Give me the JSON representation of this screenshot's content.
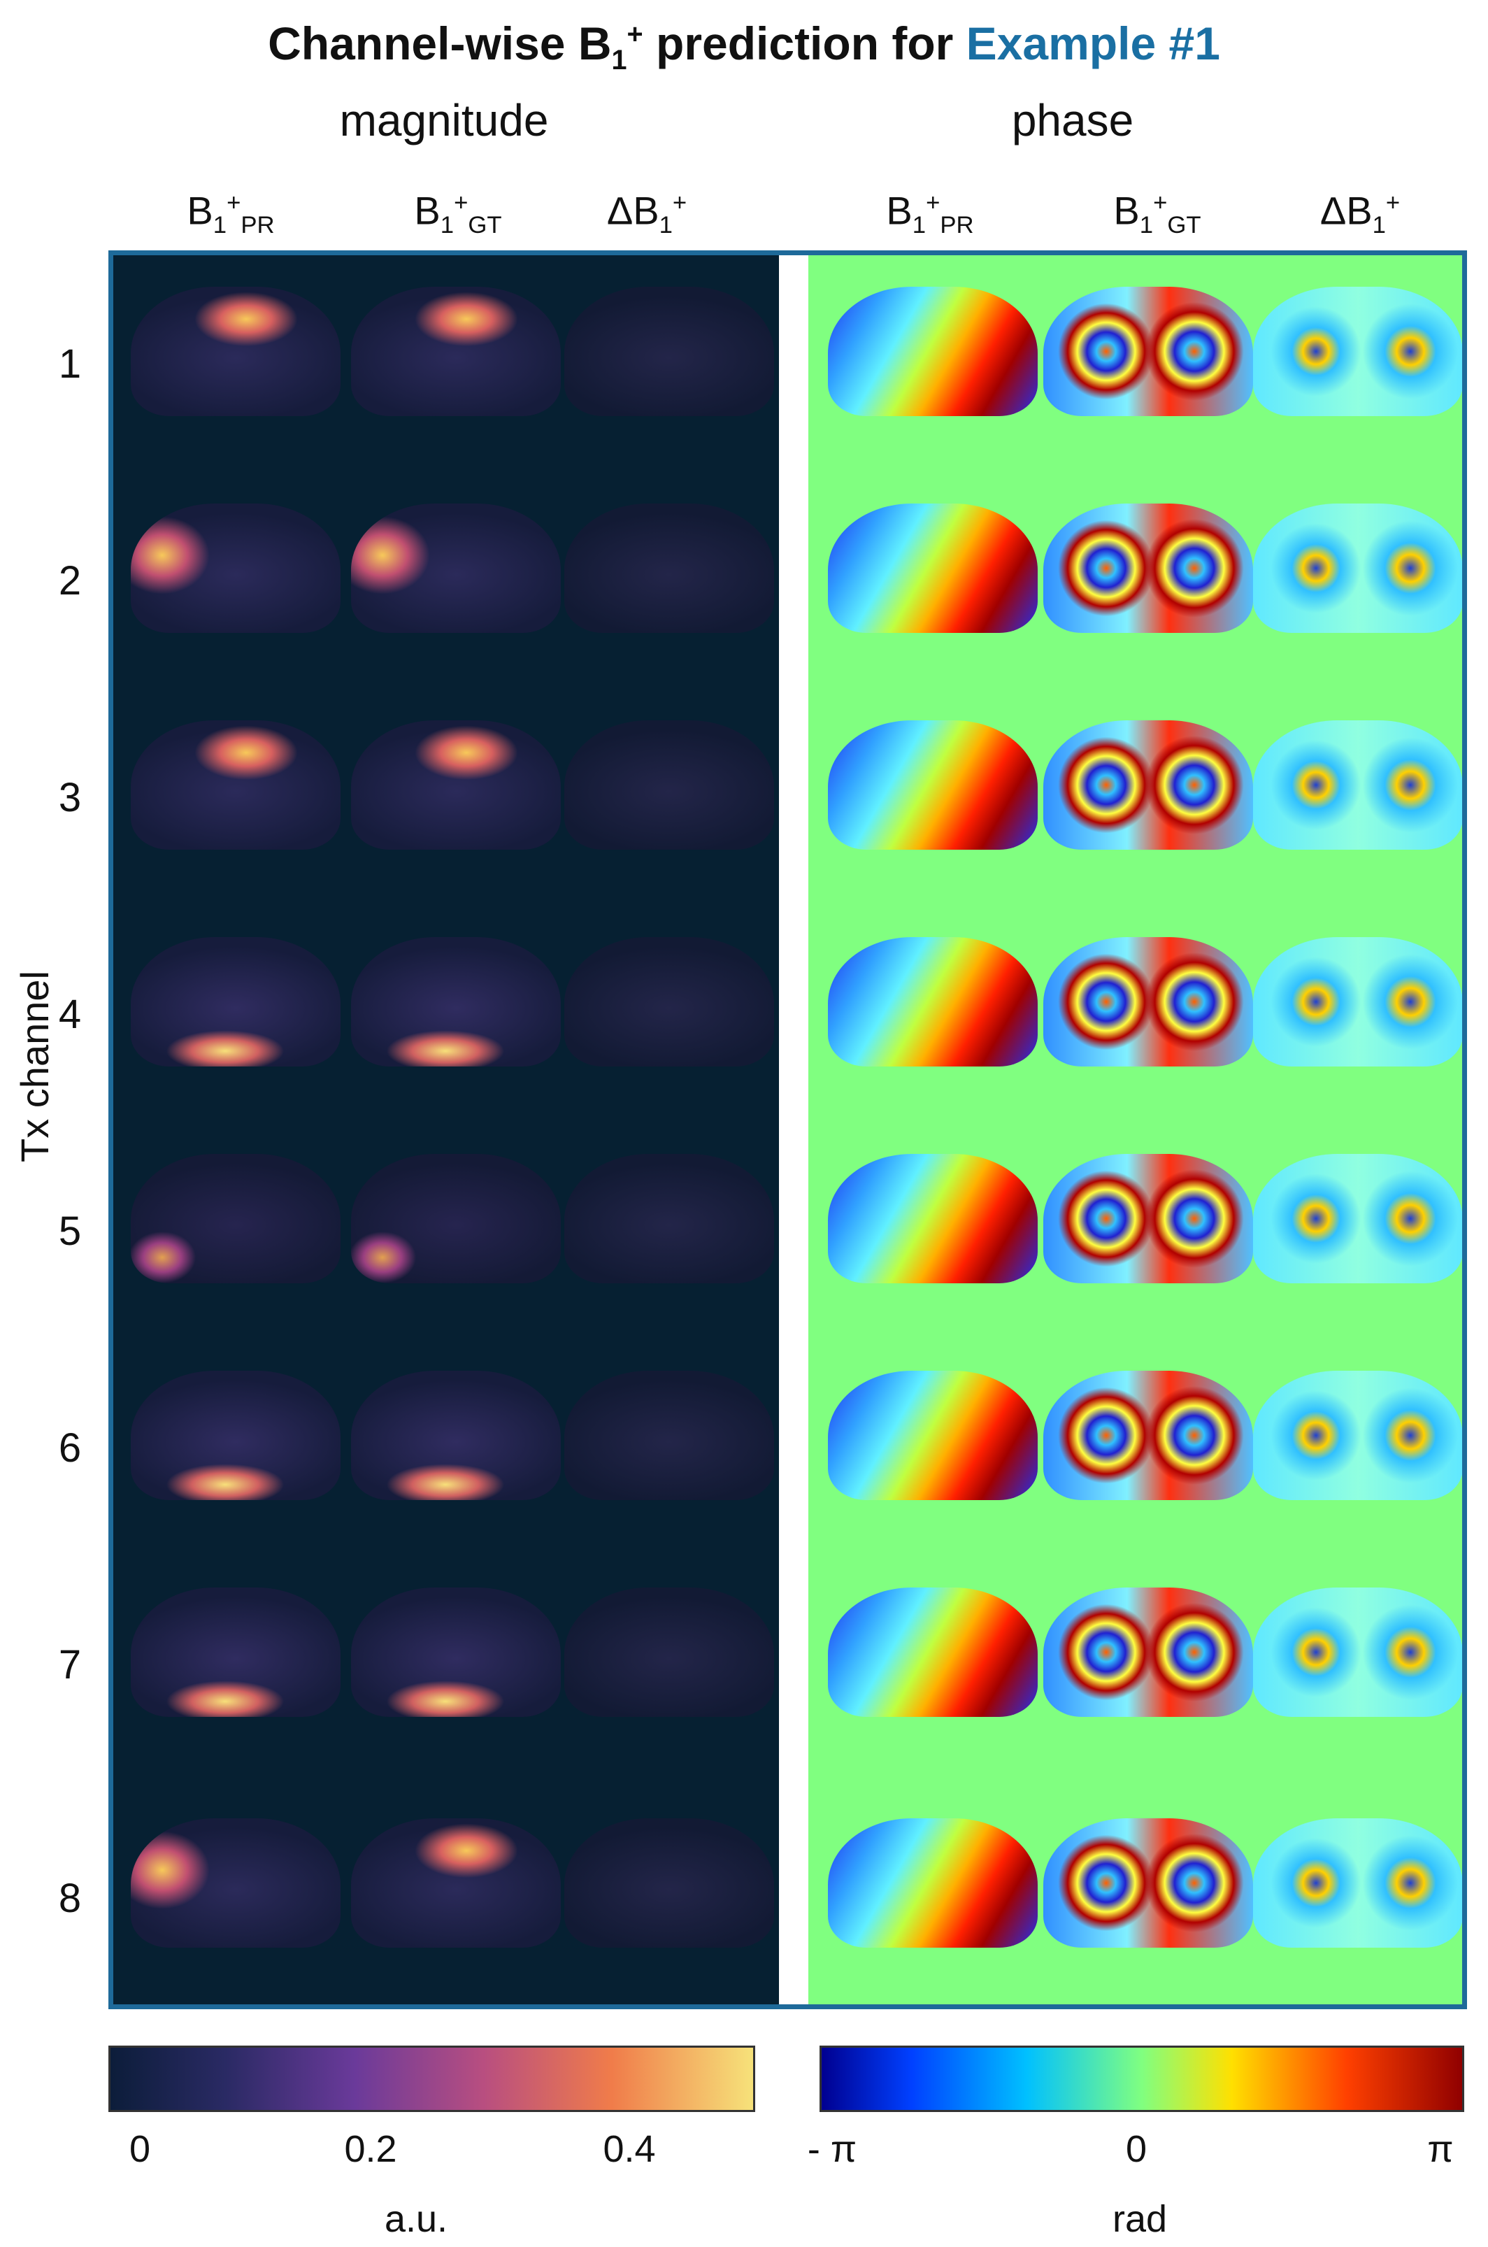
{
  "title": {
    "part1": "Channel-wise B",
    "sub1": "1",
    "sup1": "+",
    "part2": " prediction for ",
    "highlight": "Example #1"
  },
  "sections": {
    "magnitude": "magnitude",
    "phase": "phase"
  },
  "column_headers": [
    {
      "base": "B",
      "sub": "1",
      "sup": "+",
      "suffix": "PR"
    },
    {
      "base": "B",
      "sub": "1",
      "sup": "+",
      "suffix": "GT"
    },
    {
      "base": "ΔB",
      "sub": "1",
      "sup": "+",
      "suffix": ""
    }
  ],
  "y_axis_label": "Tx channel",
  "rows": [
    "1",
    "2",
    "3",
    "4",
    "5",
    "6",
    "7",
    "8"
  ],
  "colorbars": {
    "magnitude": {
      "ticks": [
        "0",
        "0.2",
        "0.4"
      ],
      "unit": "a.u."
    },
    "phase": {
      "ticks": [
        "- π",
        "0",
        "π"
      ],
      "unit": "rad"
    }
  },
  "colors": {
    "frame": "#1e6a9a",
    "title_highlight": "#1a6fa3",
    "magnitude_background": "#062032",
    "phase_background": "#80ff80"
  }
}
